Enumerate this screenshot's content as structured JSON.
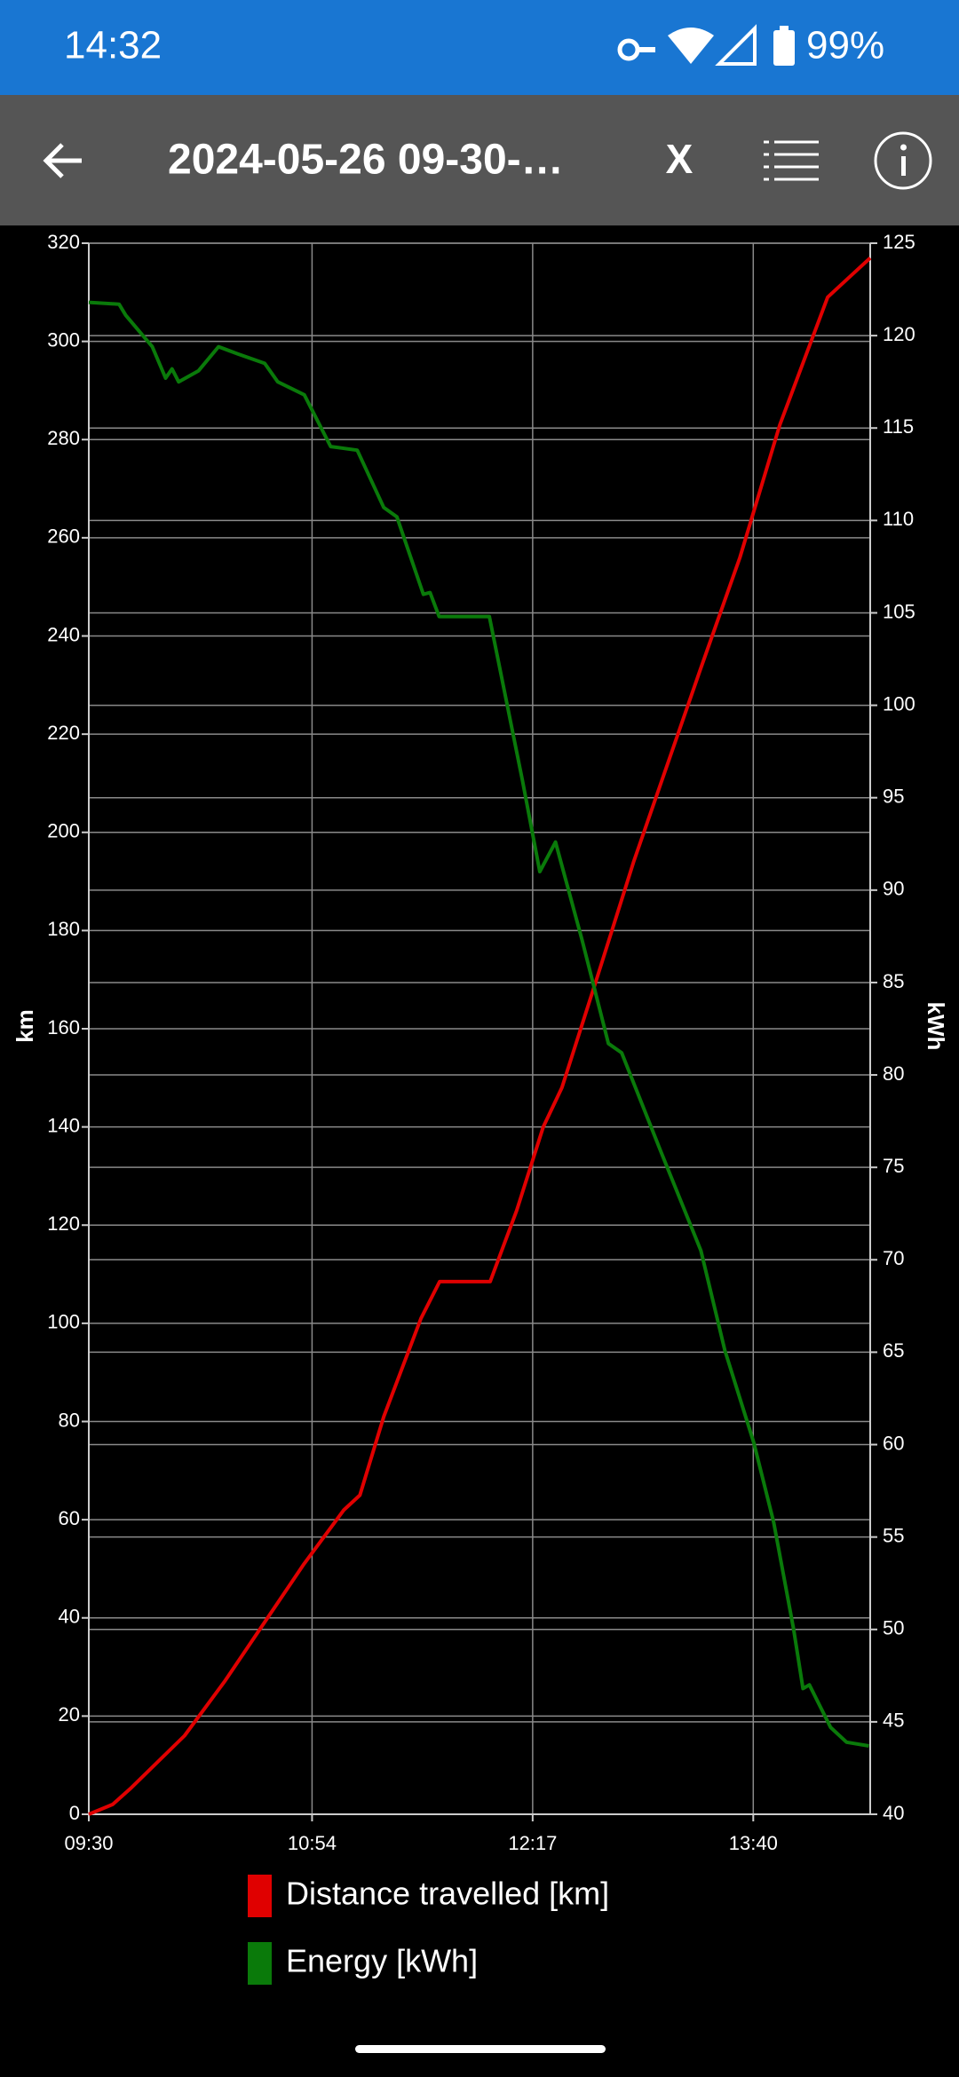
{
  "status_bar": {
    "time": "14:32",
    "battery": "99%"
  },
  "toolbar": {
    "title": "2024-05-26 09-30-…",
    "close": "X"
  },
  "chart_data": {
    "type": "line",
    "ylabel": "km",
    "y2label": "kWh",
    "xlim": [
      570,
      864
    ],
    "xticks": [
      {
        "value": 570,
        "label": "09:30"
      },
      {
        "value": 654,
        "label": "10:54"
      },
      {
        "value": 737,
        "label": "12:17"
      },
      {
        "value": 820,
        "label": "13:40"
      }
    ],
    "ylim": [
      0,
      320
    ],
    "yticks": [
      0,
      20,
      40,
      60,
      80,
      100,
      120,
      140,
      160,
      180,
      200,
      220,
      240,
      260,
      280,
      300,
      320
    ],
    "y2lim": [
      40,
      125
    ],
    "y2ticks": [
      40,
      45,
      50,
      55,
      60,
      65,
      70,
      75,
      80,
      85,
      90,
      95,
      100,
      105,
      110,
      115,
      120,
      125
    ],
    "grid": true,
    "series": [
      {
        "name": "Distance travelled [km]",
        "color": "#e00000",
        "x": [
          570,
          579,
          586,
          606,
          621,
          636,
          651,
          666,
          672,
          681,
          695,
          702,
          721,
          731,
          741,
          748,
          761,
          775,
          800,
          815,
          830,
          848,
          858,
          864
        ],
        "values": [
          0,
          2,
          5.4,
          16,
          27,
          39,
          51,
          62,
          65,
          81,
          101,
          108.5,
          108.5,
          123,
          140,
          148,
          170,
          194,
          233,
          256,
          283,
          309,
          314,
          317
        ]
      },
      {
        "name": "Energy [kWh]",
        "color": "#0a7a0a",
        "axis": "y2",
        "x": [
          570,
          581.4,
          583.9,
          593.9,
          598.9,
          601.3,
          603.8,
          611.3,
          618.8,
          626.2,
          636.2,
          641.1,
          651.1,
          661,
          671,
          681,
          685.9,
          695.9,
          698.4,
          701.8,
          720.7,
          733.2,
          739.7,
          745.6,
          755.6,
          765.5,
          770.5,
          785.4,
          800.3,
          809.3,
          820.2,
          827.7,
          835.2,
          838.7,
          841.1,
          849.1,
          855.1,
          863.5
        ],
        "values": [
          121.8,
          121.7,
          121.1,
          119.4,
          117.7,
          118.2,
          117.5,
          118.1,
          119.4,
          119,
          118.5,
          117.5,
          116.8,
          114,
          113.8,
          110.7,
          110.2,
          106,
          106.1,
          104.8,
          104.8,
          95.9,
          91,
          92.6,
          87.3,
          81.7,
          81.2,
          75.8,
          70.5,
          65.1,
          60.1,
          55.8,
          50,
          46.8,
          47,
          44.7,
          43.9,
          43.7
        ]
      }
    ]
  }
}
